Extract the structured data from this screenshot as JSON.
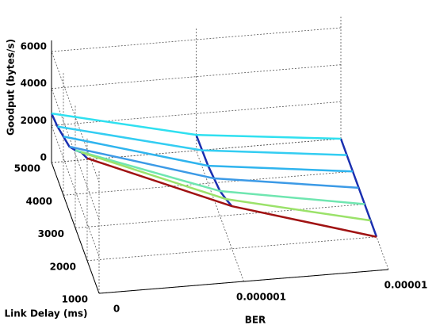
{
  "chart_data": {
    "type": "surface3d",
    "x_label": "BER",
    "y_label": "Link Delay (ms)",
    "z_label": "Goodput (bytes/s)",
    "categories": [
      "0",
      "0.000001",
      "0.00001"
    ],
    "y": [
      5000,
      4500,
      4000,
      3500,
      3000,
      2500,
      2000
    ],
    "ylim": [
      1000,
      5000
    ],
    "yticks": [
      1000,
      2000,
      3000,
      4000,
      5000
    ],
    "zlim": [
      0,
      6600
    ],
    "zticks": [
      0,
      2000,
      4000,
      6000
    ],
    "grid": true,
    "edge_color": "#1a2fb0",
    "series": [
      {
        "color": "#2fe0f0",
        "values": [
          2650,
          850,
          0
        ]
      },
      {
        "color": "#33cdf2",
        "values": [
          2830,
          900,
          0
        ]
      },
      {
        "color": "#2fb4ee",
        "values": [
          3170,
          950,
          0
        ]
      },
      {
        "color": "#3c9ae6",
        "values": [
          3510,
          1150,
          0
        ]
      },
      {
        "color": "#6fe6b0",
        "values": [
          4200,
          1350,
          0
        ]
      },
      {
        "color": "#9be26a",
        "values": [
          4970,
          1800,
          0
        ]
      },
      {
        "color": "#a01212",
        "values": [
          5530,
          2300,
          0
        ]
      }
    ]
  }
}
